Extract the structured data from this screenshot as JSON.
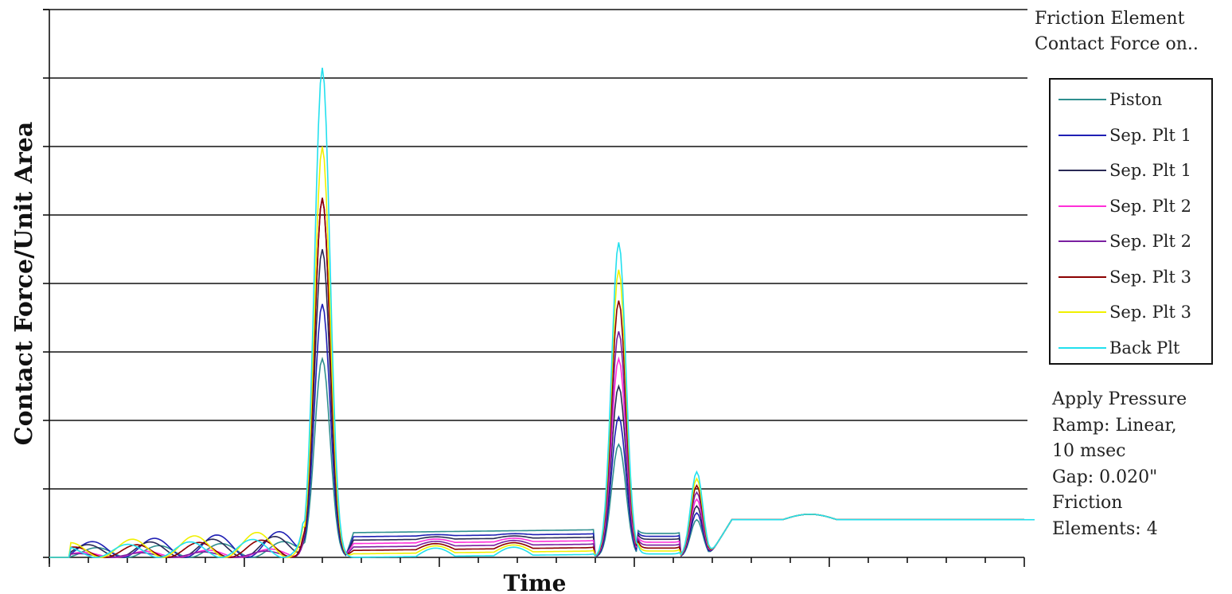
{
  "chart_data": {
    "type": "line",
    "title": "",
    "xlabel": "Time",
    "ylabel": "Contact Force/Unit Area",
    "xlim": [
      0,
      25
    ],
    "ylim": [
      0,
      8
    ],
    "x_ticks_count": 25,
    "y_gridlines": [
      1,
      2,
      3,
      4,
      5,
      6,
      7,
      8
    ],
    "grid": "horizontal",
    "legend_title": "Friction Element Contact Force on..",
    "legend_position": "right",
    "peaks": {
      "peak1_x": 7.0,
      "peak2_x": 14.6,
      "peak3_x": 16.6
    },
    "steady_value": 0.55,
    "series": [
      {
        "name": "Piston",
        "color": "#2f8f8f",
        "peak1": 2.9,
        "peak2": 1.65,
        "peak3": 0.55,
        "plateau": 0.36
      },
      {
        "name": "Sep. Plt 1",
        "color": "#1f1fb4",
        "peak1": 3.7,
        "peak2": 2.05,
        "peak3": 0.65,
        "plateau": 0.3
      },
      {
        "name": "Sep. Plt 1",
        "color": "#2a2a55",
        "peak1": 4.5,
        "peak2": 2.5,
        "peak3": 0.75,
        "plateau": 0.25
      },
      {
        "name": "Sep. Plt 2",
        "color": "#ff2fd8",
        "peak1": 5.25,
        "peak2": 2.9,
        "peak3": 0.85,
        "plateau": 0.2
      },
      {
        "name": "Sep. Plt 2",
        "color": "#7a1fa0",
        "peak1": 5.25,
        "peak2": 3.3,
        "peak3": 0.95,
        "plateau": 0.15
      },
      {
        "name": "Sep. Plt 3",
        "color": "#8b0000",
        "peak1": 5.25,
        "peak2": 3.75,
        "peak3": 1.05,
        "plateau": 0.1
      },
      {
        "name": "Sep. Plt 3",
        "color": "#f0f000",
        "peak1": 6.0,
        "peak2": 4.2,
        "peak3": 1.15,
        "plateau": 0.05
      },
      {
        "name": "Back Plt",
        "color": "#22e0ee",
        "peak1": 7.15,
        "peak2": 4.6,
        "peak3": 1.25,
        "plateau": 0.0
      }
    ]
  },
  "legend_title_lines": [
    "Friction Element",
    "Contact Force on.."
  ],
  "note_lines": [
    "Apply Pressure",
    "Ramp: Linear,",
    "10 msec",
    "Gap: 0.020\"",
    "Friction",
    "Elements: 4"
  ]
}
